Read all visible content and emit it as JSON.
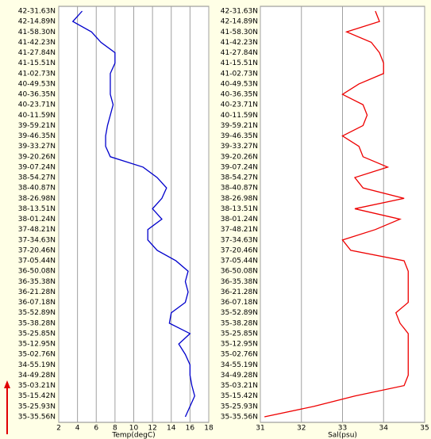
{
  "chart_data": [
    {
      "type": "line",
      "xlabel": "Temp(degC)",
      "color": "#0000cc",
      "grid": true,
      "categories": [
        "42-31.63N",
        "42-14.89N",
        "41-58.30N",
        "41-42.23N",
        "41-27.84N",
        "41-15.51N",
        "41-02.73N",
        "40-49.53N",
        "40-36.35N",
        "40-23.71N",
        "40-11.59N",
        "39-59.21N",
        "39-46.35N",
        "39-33.27N",
        "39-20.26N",
        "39-07.24N",
        "38-54.27N",
        "38-40.87N",
        "38-26.98N",
        "38-13.51N",
        "38-01.24N",
        "37-48.21N",
        "37-34.63N",
        "37-20.46N",
        "37-05.44N",
        "36-50.08N",
        "36-35.38N",
        "36-21.28N",
        "36-07.18N",
        "35-52.89N",
        "35-38.28N",
        "35-25.85N",
        "35-12.95N",
        "35-02.76N",
        "34-55.19N",
        "34-49.28N",
        "35-03.21N",
        "35-15.42N",
        "35-25.93N",
        "35-35.56N"
      ],
      "values": [
        4.5,
        3.5,
        5.5,
        6.5,
        8,
        8,
        7.5,
        7.5,
        7.5,
        7.8,
        7.5,
        7.2,
        7,
        7,
        7.5,
        11,
        12.5,
        13.5,
        13,
        12,
        13,
        11.5,
        11.5,
        12.5,
        14.5,
        15.8,
        15.5,
        15.8,
        15.5,
        14,
        13.8,
        16,
        14.8,
        15.5,
        16,
        16,
        16.2,
        16.5,
        16,
        15.5
      ],
      "xlim": [
        2,
        18
      ],
      "xticks": [
        2,
        4,
        6,
        8,
        10,
        12,
        14,
        16,
        18
      ]
    },
    {
      "type": "line",
      "xlabel": "Sal(psu)",
      "color": "#ee0000",
      "grid": true,
      "categories": [
        "42-31.63N",
        "42-14.89N",
        "41-58.30N",
        "41-42.23N",
        "41-27.84N",
        "41-15.51N",
        "41-02.73N",
        "40-49.53N",
        "40-36.35N",
        "40-23.71N",
        "40-11.59N",
        "39-59.21N",
        "39-46.35N",
        "39-33.27N",
        "39-20.26N",
        "39-07.24N",
        "38-54.27N",
        "38-40.87N",
        "38-26.98N",
        "38-13.51N",
        "38-01.24N",
        "37-48.21N",
        "37-34.63N",
        "37-20.46N",
        "37-05.44N",
        "36-50.08N",
        "36-35.38N",
        "36-21.28N",
        "36-07.18N",
        "35-52.89N",
        "35-38.28N",
        "35-25.85N",
        "35-12.95N",
        "35-02.76N",
        "34-55.19N",
        "34-49.28N",
        "35-03.21N",
        "35-15.42N",
        "35-25.93N",
        "35-35.56N"
      ],
      "values": [
        33.8,
        33.9,
        33.1,
        33.7,
        33.9,
        34,
        34,
        33.4,
        33,
        33.5,
        33.6,
        33.5,
        33,
        33.4,
        33.5,
        34.1,
        33.3,
        33.5,
        34.5,
        33.3,
        34.4,
        33.8,
        33,
        33.2,
        34.5,
        34.6,
        34.6,
        34.6,
        34.6,
        34.3,
        34.4,
        34.6,
        34.6,
        34.6,
        34.6,
        34.6,
        34.5,
        33.3,
        32.3,
        31.1
      ],
      "xlim": [
        31,
        35
      ],
      "xticks": [
        31,
        32,
        33,
        34,
        35
      ]
    }
  ]
}
